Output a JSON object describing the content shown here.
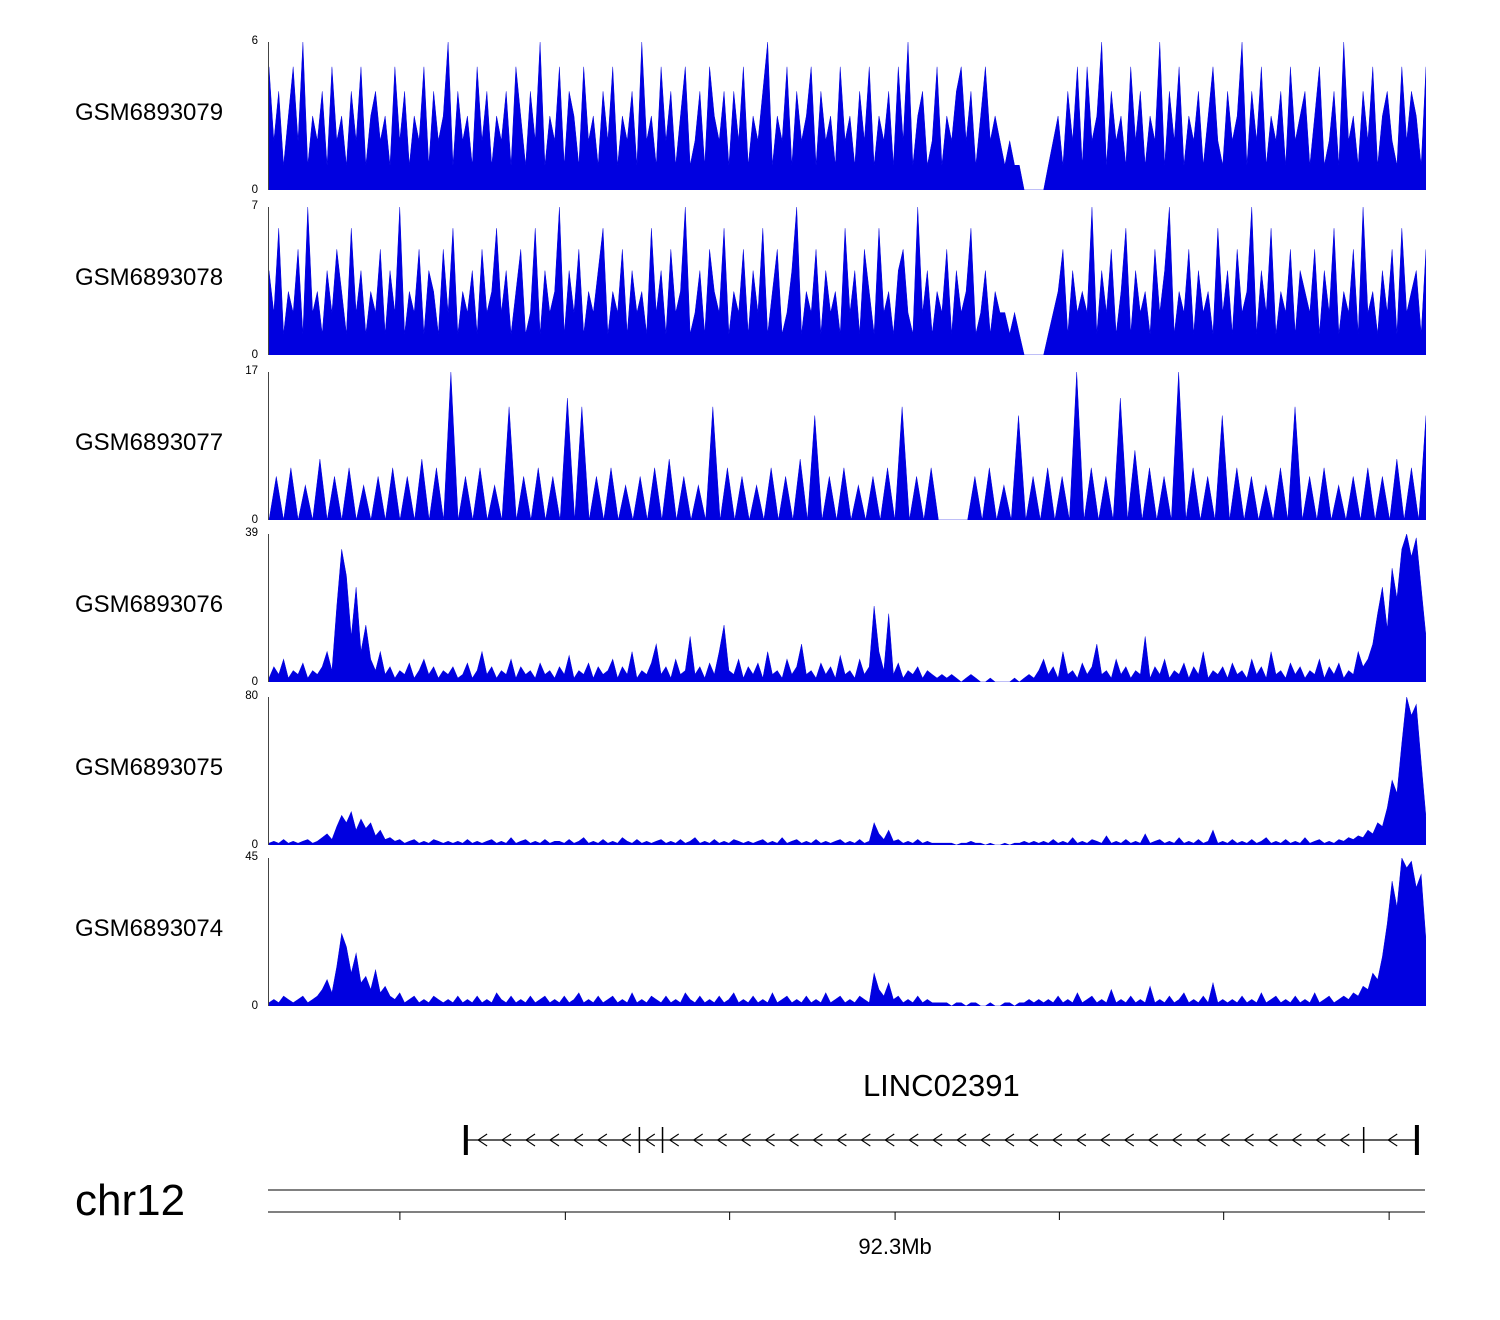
{
  "colors": {
    "coverage_fill": "#0000e0",
    "line": "#000000",
    "background": "#ffffff",
    "text": "#000000"
  },
  "chart_data": {
    "type": "area",
    "title": "",
    "layout": {
      "grid": false,
      "legend": false,
      "orientation": "genome-browser-tracks"
    },
    "tracks": [
      {
        "label": "GSM6893079",
        "ymax": 6,
        "y_top_label": "6",
        "y_bottom_label": "0",
        "values": [
          5,
          2,
          4,
          1,
          3,
          5,
          2,
          6,
          1,
          3,
          2,
          4,
          1,
          5,
          2,
          3,
          1,
          4,
          2,
          5,
          1,
          3,
          4,
          2,
          3,
          1,
          5,
          2,
          4,
          1,
          3,
          2,
          5,
          1,
          4,
          2,
          3,
          6,
          1,
          4,
          2,
          3,
          1,
          5,
          2,
          4,
          1,
          3,
          2,
          4,
          1,
          5,
          3,
          1,
          4,
          2,
          6,
          1,
          3,
          2,
          5,
          1,
          4,
          3,
          1,
          5,
          2,
          3,
          1,
          4,
          2,
          5,
          1,
          3,
          2,
          4,
          1,
          6,
          2,
          3,
          1,
          5,
          2,
          4,
          1,
          3,
          5,
          1,
          2,
          4,
          1,
          5,
          3,
          2,
          4,
          1,
          4,
          2,
          5,
          1,
          3,
          2,
          4,
          6,
          1,
          3,
          2,
          5,
          1,
          4,
          2,
          3,
          5,
          1,
          4,
          2,
          3,
          1,
          5,
          2,
          3,
          1,
          4,
          2,
          5,
          1,
          3,
          2,
          4,
          1,
          5,
          2,
          6,
          1,
          3,
          4,
          1,
          2,
          5,
          1,
          3,
          2,
          4,
          5,
          2,
          4,
          1,
          3,
          5,
          2,
          3,
          2,
          1,
          2,
          1,
          1,
          0,
          0,
          0,
          0,
          0,
          1,
          2,
          3,
          1,
          4,
          2,
          5,
          1,
          5,
          2,
          3,
          6,
          1,
          4,
          2,
          3,
          1,
          5,
          2,
          4,
          1,
          3,
          2,
          6,
          1,
          4,
          2,
          5,
          1,
          3,
          2,
          4,
          1,
          3,
          5,
          2,
          1,
          4,
          2,
          3,
          6,
          1,
          4,
          2,
          5,
          1,
          3,
          2,
          4,
          1,
          5,
          2,
          3,
          4,
          1,
          3,
          5,
          1,
          2,
          4,
          1,
          6,
          2,
          3,
          1,
          4,
          2,
          5,
          1,
          3,
          4,
          2,
          1,
          5,
          2,
          4,
          3,
          1,
          5
        ]
      },
      {
        "label": "GSM6893078",
        "ymax": 7,
        "y_top_label": "7",
        "y_bottom_label": "0",
        "values": [
          4,
          2,
          6,
          1,
          3,
          2,
          5,
          1,
          7,
          2,
          3,
          1,
          4,
          2,
          5,
          3,
          1,
          6,
          2,
          4,
          1,
          3,
          2,
          5,
          1,
          4,
          2,
          7,
          1,
          3,
          2,
          5,
          1,
          4,
          3,
          1,
          5,
          2,
          6,
          1,
          3,
          2,
          4,
          1,
          5,
          2,
          3,
          6,
          2,
          4,
          1,
          3,
          5,
          1,
          2,
          6,
          1,
          4,
          2,
          3,
          7,
          1,
          4,
          2,
          5,
          1,
          3,
          2,
          4,
          6,
          1,
          3,
          2,
          5,
          1,
          4,
          2,
          3,
          1,
          6,
          2,
          4,
          1,
          5,
          2,
          3,
          7,
          1,
          2,
          4,
          1,
          5,
          3,
          2,
          6,
          1,
          3,
          2,
          5,
          1,
          4,
          2,
          6,
          1,
          3,
          5,
          1,
          2,
          4,
          7,
          1,
          3,
          2,
          5,
          1,
          4,
          2,
          3,
          1,
          6,
          2,
          4,
          1,
          5,
          3,
          1,
          6,
          2,
          3,
          1,
          4,
          5,
          2,
          1,
          7,
          2,
          4,
          1,
          3,
          2,
          5,
          1,
          4,
          2,
          3,
          6,
          1,
          2,
          4,
          1,
          3,
          2,
          2,
          1,
          2,
          1,
          0,
          0,
          0,
          0,
          0,
          1,
          2,
          3,
          5,
          1,
          4,
          2,
          3,
          2,
          7,
          1,
          4,
          2,
          5,
          1,
          3,
          6,
          1,
          4,
          2,
          3,
          1,
          5,
          2,
          4,
          7,
          1,
          3,
          2,
          5,
          1,
          4,
          2,
          3,
          1,
          6,
          2,
          4,
          1,
          5,
          2,
          3,
          7,
          1,
          4,
          2,
          6,
          1,
          3,
          2,
          5,
          1,
          4,
          3,
          2,
          5,
          1,
          4,
          2,
          6,
          1,
          3,
          2,
          5,
          1,
          7,
          2,
          3,
          1,
          4,
          2,
          5,
          1,
          6,
          2,
          3,
          4,
          1,
          5
        ]
      },
      {
        "label": "GSM6893077",
        "ymax": 17,
        "y_top_label": "17",
        "y_bottom_label": "0",
        "values": [
          0,
          5,
          0,
          6,
          0,
          4,
          0,
          7,
          0,
          5,
          0,
          6,
          0,
          4,
          0,
          5,
          0,
          6,
          0,
          5,
          0,
          7,
          0,
          6,
          0,
          17,
          0,
          5,
          0,
          6,
          0,
          4,
          0,
          13,
          0,
          5,
          0,
          6,
          0,
          5,
          0,
          14,
          0,
          13,
          0,
          5,
          0,
          6,
          0,
          4,
          0,
          5,
          0,
          6,
          0,
          7,
          0,
          5,
          0,
          4,
          0,
          13,
          0,
          6,
          0,
          5,
          0,
          4,
          0,
          6,
          0,
          5,
          0,
          7,
          0,
          12,
          0,
          5,
          0,
          6,
          0,
          4,
          0,
          5,
          0,
          6,
          0,
          13,
          0,
          5,
          0,
          6,
          0,
          0,
          0,
          0,
          0,
          5,
          0,
          6,
          0,
          4,
          0,
          12,
          0,
          5,
          0,
          6,
          0,
          5,
          0,
          17,
          0,
          6,
          0,
          5,
          0,
          14,
          0,
          8,
          0,
          6,
          0,
          5,
          0,
          17,
          0,
          6,
          0,
          5,
          0,
          12,
          0,
          6,
          0,
          5,
          0,
          4,
          0,
          6,
          0,
          13,
          0,
          5,
          0,
          6,
          0,
          4,
          0,
          5,
          0,
          6,
          0,
          5,
          0,
          7,
          0,
          6,
          0,
          12
        ]
      },
      {
        "label": "GSM6893076",
        "ymax": 39,
        "y_top_label": "39",
        "y_bottom_label": "0",
        "values": [
          1,
          4,
          2,
          6,
          1,
          3,
          2,
          5,
          1,
          3,
          2,
          4,
          8,
          3,
          20,
          35,
          28,
          12,
          25,
          8,
          15,
          6,
          3,
          8,
          2,
          4,
          1,
          3,
          2,
          5,
          1,
          3,
          6,
          2,
          4,
          1,
          3,
          2,
          4,
          1,
          2,
          5,
          1,
          3,
          8,
          2,
          4,
          1,
          3,
          2,
          6,
          1,
          4,
          2,
          3,
          1,
          5,
          2,
          3,
          1,
          4,
          2,
          7,
          1,
          3,
          2,
          5,
          1,
          4,
          2,
          3,
          6,
          1,
          4,
          2,
          8,
          1,
          3,
          2,
          5,
          10,
          2,
          4,
          1,
          6,
          2,
          3,
          12,
          2,
          4,
          1,
          5,
          2,
          8,
          15,
          3,
          2,
          6,
          1,
          4,
          2,
          5,
          1,
          8,
          2,
          3,
          1,
          6,
          2,
          4,
          10,
          2,
          3,
          1,
          5,
          2,
          4,
          1,
          7,
          2,
          3,
          1,
          6,
          2,
          4,
          20,
          8,
          3,
          18,
          2,
          5,
          1,
          3,
          2,
          4,
          1,
          3,
          2,
          1,
          2,
          1,
          2,
          1,
          0,
          1,
          2,
          1,
          0,
          0,
          1,
          0,
          0,
          0,
          0,
          1,
          0,
          1,
          2,
          1,
          3,
          6,
          2,
          4,
          1,
          8,
          2,
          3,
          1,
          5,
          2,
          4,
          10,
          2,
          3,
          1,
          6,
          2,
          4,
          1,
          3,
          2,
          12,
          1,
          4,
          2,
          6,
          1,
          3,
          2,
          5,
          1,
          4,
          2,
          8,
          1,
          3,
          2,
          4,
          1,
          5,
          2,
          3,
          1,
          6,
          2,
          4,
          1,
          8,
          2,
          3,
          1,
          5,
          2,
          4,
          1,
          3,
          2,
          6,
          1,
          4,
          2,
          5,
          1,
          3,
          2,
          8,
          4,
          6,
          10,
          18,
          25,
          14,
          30,
          22,
          35,
          39,
          33,
          38,
          25,
          12
        ]
      },
      {
        "label": "GSM6893075",
        "ymax": 80,
        "y_top_label": "80",
        "y_bottom_label": "0",
        "values": [
          1,
          2,
          1,
          3,
          1,
          2,
          1,
          2,
          3,
          1,
          2,
          4,
          6,
          3,
          10,
          16,
          12,
          18,
          8,
          14,
          9,
          12,
          5,
          8,
          3,
          4,
          2,
          3,
          1,
          2,
          3,
          1,
          2,
          1,
          3,
          2,
          1,
          2,
          1,
          2,
          1,
          3,
          1,
          2,
          1,
          2,
          3,
          1,
          2,
          1,
          4,
          1,
          2,
          3,
          1,
          2,
          1,
          3,
          1,
          2,
          2,
          1,
          3,
          1,
          2,
          4,
          1,
          2,
          1,
          3,
          1,
          2,
          1,
          4,
          2,
          1,
          3,
          1,
          2,
          1,
          2,
          3,
          1,
          2,
          1,
          3,
          1,
          2,
          4,
          1,
          2,
          1,
          3,
          1,
          2,
          1,
          3,
          2,
          1,
          2,
          1,
          2,
          3,
          1,
          2,
          1,
          4,
          1,
          2,
          3,
          1,
          2,
          1,
          3,
          1,
          2,
          1,
          2,
          3,
          1,
          2,
          1,
          3,
          1,
          2,
          12,
          6,
          3,
          8,
          2,
          3,
          1,
          2,
          1,
          3,
          1,
          2,
          1,
          1,
          1,
          1,
          1,
          0,
          1,
          1,
          2,
          1,
          1,
          0,
          1,
          0,
          0,
          1,
          0,
          1,
          1,
          2,
          1,
          2,
          1,
          2,
          1,
          3,
          1,
          2,
          1,
          4,
          1,
          2,
          1,
          3,
          2,
          1,
          5,
          1,
          2,
          1,
          3,
          1,
          2,
          1,
          6,
          1,
          2,
          3,
          1,
          2,
          1,
          4,
          1,
          2,
          1,
          3,
          1,
          2,
          8,
          1,
          2,
          1,
          3,
          1,
          2,
          1,
          3,
          1,
          2,
          4,
          1,
          2,
          1,
          3,
          1,
          2,
          1,
          4,
          1,
          2,
          3,
          1,
          2,
          1,
          3,
          2,
          4,
          3,
          5,
          4,
          8,
          6,
          12,
          10,
          20,
          35,
          28,
          55,
          80,
          70,
          76,
          45,
          15
        ]
      },
      {
        "label": "GSM6893074",
        "ymax": 45,
        "y_top_label": "45",
        "y_bottom_label": "0",
        "values": [
          1,
          2,
          1,
          3,
          2,
          1,
          2,
          3,
          1,
          2,
          3,
          5,
          8,
          4,
          12,
          22,
          18,
          10,
          16,
          7,
          9,
          5,
          11,
          4,
          6,
          3,
          2,
          4,
          1,
          2,
          3,
          1,
          2,
          1,
          3,
          2,
          1,
          2,
          1,
          3,
          1,
          2,
          1,
          3,
          1,
          2,
          1,
          4,
          2,
          1,
          3,
          1,
          2,
          1,
          3,
          1,
          2,
          3,
          1,
          2,
          1,
          3,
          1,
          2,
          4,
          1,
          2,
          1,
          3,
          1,
          2,
          3,
          1,
          2,
          1,
          4,
          1,
          2,
          1,
          3,
          2,
          1,
          3,
          1,
          2,
          1,
          4,
          2,
          1,
          3,
          1,
          2,
          1,
          3,
          1,
          2,
          4,
          1,
          2,
          1,
          3,
          1,
          2,
          1,
          4,
          1,
          2,
          3,
          1,
          2,
          1,
          3,
          1,
          2,
          1,
          4,
          1,
          2,
          3,
          1,
          2,
          1,
          3,
          2,
          1,
          10,
          5,
          3,
          7,
          2,
          3,
          1,
          2,
          1,
          3,
          1,
          2,
          1,
          1,
          1,
          1,
          0,
          1,
          1,
          0,
          1,
          1,
          0,
          0,
          1,
          0,
          0,
          1,
          1,
          0,
          1,
          1,
          2,
          1,
          2,
          1,
          2,
          1,
          3,
          1,
          2,
          1,
          4,
          1,
          2,
          3,
          1,
          2,
          1,
          5,
          1,
          2,
          1,
          3,
          1,
          2,
          1,
          6,
          1,
          2,
          1,
          3,
          1,
          2,
          4,
          1,
          2,
          1,
          3,
          1,
          7,
          1,
          2,
          1,
          2,
          1,
          3,
          1,
          2,
          1,
          4,
          1,
          2,
          3,
          1,
          2,
          1,
          3,
          1,
          2,
          1,
          4,
          1,
          2,
          3,
          1,
          2,
          3,
          2,
          4,
          3,
          6,
          5,
          10,
          8,
          15,
          25,
          38,
          30,
          45,
          42,
          44,
          36,
          40,
          20
        ]
      }
    ],
    "gene_track": {
      "title": "LINC02391",
      "strand": "reverse",
      "arrow_direction": "left",
      "arrow_step": 0.0207,
      "line_start": 0.171,
      "line_end": 0.993,
      "boundaries": [
        {
          "pos": 0.171,
          "weight": "thick"
        },
        {
          "pos": 0.321,
          "weight": "thin"
        },
        {
          "pos": 0.341,
          "weight": "thin"
        },
        {
          "pos": 0.947,
          "weight": "thin"
        },
        {
          "pos": 0.993,
          "weight": "thick"
        }
      ]
    },
    "axis": {
      "chromosome": "chr12",
      "label": "92.3Mb",
      "label_tick_index": 3,
      "ticks": [
        0.114,
        0.257,
        0.399,
        0.542,
        0.684,
        0.826,
        0.969
      ]
    }
  }
}
